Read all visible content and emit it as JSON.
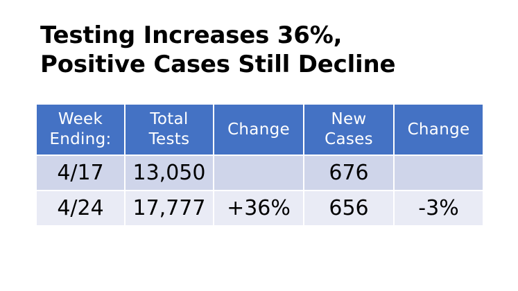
{
  "title": {
    "line1": "Testing Increases 36%,",
    "line2": "Positive Cases Still Decline"
  },
  "table": {
    "headers": [
      {
        "line1": "Week",
        "line2": "Ending:"
      },
      {
        "line1": "Total",
        "line2": "Tests"
      },
      {
        "line1": "Change",
        "line2": ""
      },
      {
        "line1": "New",
        "line2": "Cases"
      },
      {
        "line1": "Change",
        "line2": ""
      }
    ],
    "rows": [
      {
        "week": "4/17",
        "tests": "13,050",
        "tests_change": "",
        "cases": "676",
        "cases_change": ""
      },
      {
        "week": "4/24",
        "tests": "17,777",
        "tests_change": "+36%",
        "cases": "656",
        "cases_change": "-3%"
      }
    ]
  },
  "colors": {
    "header_bg": "#4472c4",
    "row_odd_bg": "#cfd5ea",
    "row_even_bg": "#e9ebf5",
    "positive": "#548235",
    "negative": "#ff0000"
  }
}
